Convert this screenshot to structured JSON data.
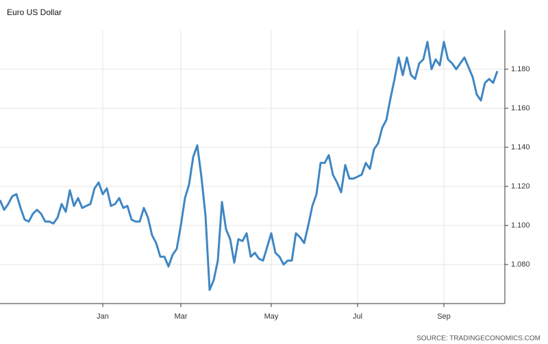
{
  "chart_data": {
    "type": "line",
    "title": "Euro US Dollar",
    "source": "SOURCE: TRADINGECONOMICS.COM",
    "categories": [
      null,
      null,
      null,
      null,
      null,
      null,
      null,
      null,
      null,
      null,
      null,
      null,
      null,
      null,
      null,
      null,
      null,
      null,
      null,
      null,
      null,
      null,
      null,
      null,
      null,
      "Jan",
      null,
      null,
      null,
      null,
      null,
      null,
      null,
      null,
      null,
      null,
      null,
      null,
      null,
      null,
      null,
      null,
      null,
      null,
      "Mar",
      null,
      null,
      null,
      null,
      null,
      null,
      null,
      null,
      null,
      null,
      null,
      null,
      null,
      null,
      null,
      null,
      null,
      null,
      null,
      null,
      null,
      "May",
      null,
      null,
      null,
      null,
      null,
      null,
      null,
      null,
      null,
      null,
      null,
      null,
      null,
      null,
      null,
      null,
      null,
      null,
      null,
      null,
      "Jul",
      null,
      null,
      null,
      null,
      null,
      null,
      null,
      null,
      null,
      null,
      null,
      null,
      null,
      null,
      null,
      null,
      null,
      null,
      null,
      null,
      "Sep",
      null,
      null,
      null,
      null,
      null,
      null,
      null,
      null,
      null,
      null,
      null,
      null,
      null
    ],
    "series": [
      {
        "name": "Euro US Dollar",
        "color": "#3f86c3",
        "values": [
          1.113,
          1.108,
          1.111,
          1.115,
          1.116,
          1.109,
          1.103,
          1.102,
          1.106,
          1.108,
          1.106,
          1.102,
          1.102,
          1.101,
          1.104,
          1.111,
          1.107,
          1.118,
          1.11,
          1.114,
          1.109,
          1.11,
          1.111,
          1.119,
          1.122,
          1.116,
          1.119,
          1.11,
          1.111,
          1.114,
          1.109,
          1.11,
          1.103,
          1.102,
          1.102,
          1.109,
          1.104,
          1.095,
          1.091,
          1.084,
          1.084,
          1.079,
          1.085,
          1.088,
          1.1,
          1.114,
          1.121,
          1.135,
          1.141,
          1.125,
          1.105,
          1.067,
          1.072,
          1.082,
          1.112,
          1.098,
          1.093,
          1.081,
          1.093,
          1.092,
          1.096,
          1.084,
          1.086,
          1.083,
          1.082,
          1.089,
          1.096,
          1.086,
          1.084,
          1.08,
          1.082,
          1.082,
          1.096,
          1.094,
          1.091,
          1.1,
          1.11,
          1.116,
          1.132,
          1.132,
          1.136,
          1.126,
          1.122,
          1.117,
          1.131,
          1.124,
          1.124,
          1.125,
          1.126,
          1.132,
          1.129,
          1.139,
          1.142,
          1.15,
          1.154,
          1.165,
          1.175,
          1.186,
          1.177,
          1.186,
          1.177,
          1.175,
          1.183,
          1.185,
          1.194,
          1.18,
          1.185,
          1.182,
          1.194,
          1.185,
          1.183,
          1.18,
          1.183,
          1.186,
          1.181,
          1.176,
          1.167,
          1.164,
          1.173,
          1.175,
          1.173,
          1.179
        ]
      }
    ],
    "ylim": [
      1.06,
      1.2
    ],
    "yticks": [
      {
        "value": 1.08,
        "label": "1.080"
      },
      {
        "value": 1.1,
        "label": "1.100"
      },
      {
        "value": 1.12,
        "label": "1.120"
      },
      {
        "value": 1.14,
        "label": "1.140"
      },
      {
        "value": 1.16,
        "label": "1.160"
      },
      {
        "value": 1.18,
        "label": "1.180"
      }
    ],
    "grid": true
  }
}
